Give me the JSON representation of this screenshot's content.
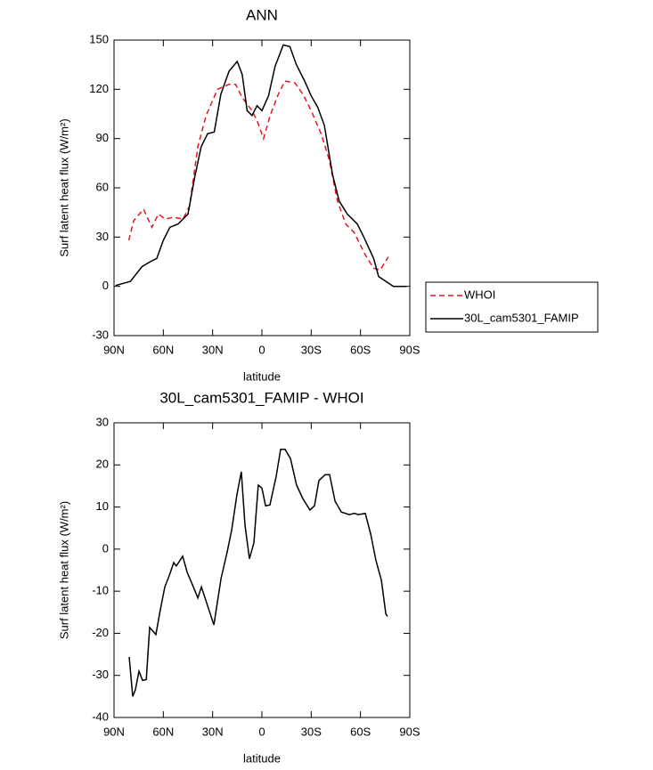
{
  "chart_data": [
    {
      "type": "line",
      "title": "ANN",
      "x_label": "latitude",
      "y_label": "Surf latent heat flux (W/m²)",
      "xlim": [
        90,
        -90
      ],
      "xticks": [
        {
          "value": 90,
          "label": "90N"
        },
        {
          "value": 60,
          "label": "60N"
        },
        {
          "value": 30,
          "label": "30N"
        },
        0,
        {
          "value": -30,
          "label": "30S"
        },
        {
          "value": -60,
          "label": "60S"
        },
        {
          "value": -90,
          "label": "90S"
        }
      ],
      "ylim": [
        -30,
        150
      ],
      "yticks": [
        -30,
        0,
        30,
        60,
        90,
        120,
        150
      ],
      "legend": "right",
      "series": [
        {
          "name": "WHOI",
          "color": "#e8141e",
          "style": "dashed",
          "x": [
            81,
            78,
            72,
            67,
            63,
            59,
            54,
            48,
            44,
            39,
            34,
            27,
            20,
            16,
            12,
            6,
            3,
            -1,
            -5,
            -10,
            -14,
            -20,
            -25,
            -30,
            -36,
            -41,
            -46,
            -51,
            -56,
            -63,
            -68,
            -72,
            -77
          ],
          "values": [
            28,
            40,
            47,
            36,
            44,
            41,
            42,
            41,
            49,
            85,
            104,
            120,
            123,
            123,
            115,
            107,
            101,
            90,
            104,
            117,
            125,
            124,
            117,
            107,
            93,
            77,
            52,
            38,
            33,
            19,
            11,
            10,
            18
          ]
        },
        {
          "name": "30L_cam5301_FAMIP",
          "color": "#000000",
          "style": "solid",
          "x": [
            89,
            80,
            73,
            68,
            64,
            60,
            56,
            51,
            45,
            41,
            37,
            33,
            29,
            25,
            20,
            15,
            12,
            9,
            6,
            3,
            0,
            -4,
            -8,
            -13,
            -17,
            -21,
            -26,
            -30,
            -34,
            -38,
            -43,
            -47,
            -52,
            -58,
            -62,
            -68,
            -71,
            -77,
            -80,
            -88
          ],
          "values": [
            0.5,
            3,
            12,
            15,
            17,
            28,
            36,
            38,
            44,
            66,
            85,
            93,
            94,
            117,
            131,
            137,
            129,
            107,
            104,
            110,
            107,
            116,
            134,
            147,
            146,
            135,
            125,
            116,
            109,
            98,
            68,
            52,
            44,
            38,
            30,
            17,
            6,
            2,
            0,
            0
          ]
        }
      ]
    },
    {
      "type": "line",
      "title": "30L_cam5301_FAMIP - WHOI",
      "x_label": "latitude",
      "y_label": "Surf latent heat flux (W/m²)",
      "xlim": [
        90,
        -90
      ],
      "xticks": [
        {
          "value": 90,
          "label": "90N"
        },
        {
          "value": 60,
          "label": "60N"
        },
        {
          "value": 30,
          "label": "30N"
        },
        0,
        {
          "value": -30,
          "label": "30S"
        },
        {
          "value": -60,
          "label": "60S"
        },
        {
          "value": -90,
          "label": "90S"
        }
      ],
      "ylim": [
        -40,
        30
      ],
      "yticks": [
        -40,
        -30,
        -20,
        -10,
        0,
        10,
        20,
        30
      ],
      "series": [
        {
          "color": "#000000",
          "style": "solid",
          "x": [
            80.8,
            78.6,
            77,
            74.8,
            72.6,
            70.4,
            68.3,
            64.5,
            61.8,
            59.1,
            56.4,
            53.7,
            52.1,
            48.2,
            45.5,
            41.7,
            39,
            36.8,
            33.6,
            29.2,
            24.9,
            21.1,
            18.4,
            15.2,
            12.5,
            10.3,
            7.6,
            4.9,
            2.2,
            0,
            -2.2,
            -4.9,
            -8.7,
            -11.4,
            -14.1,
            -17.4,
            -21.1,
            -24.9,
            -29.2,
            -32,
            -34.7,
            -38.5,
            -41.2,
            -44.5,
            -48.3,
            -53.2,
            -56.4,
            -58.6,
            -62.9,
            -66.2,
            -69.4,
            -72.7,
            -75.4,
            -76.5
          ],
          "values": [
            -25.6,
            -35,
            -33.4,
            -29,
            -31.2,
            -31,
            -18.6,
            -20.3,
            -14.4,
            -9,
            -6.3,
            -3.2,
            -4,
            -1.7,
            -5.5,
            -9,
            -11.6,
            -9,
            -12.8,
            -18,
            -7,
            -0.6,
            4.6,
            13,
            18.4,
            5.7,
            -2.3,
            1.5,
            15.2,
            14.5,
            10.3,
            10.5,
            17.3,
            23.7,
            23.7,
            21.5,
            15.2,
            12,
            9.3,
            10.3,
            16.3,
            17.7,
            17.7,
            11.4,
            8.8,
            8.2,
            8.5,
            8.2,
            8.5,
            3.6,
            -2.7,
            -7.4,
            -15.4,
            -16
          ]
        }
      ]
    }
  ]
}
